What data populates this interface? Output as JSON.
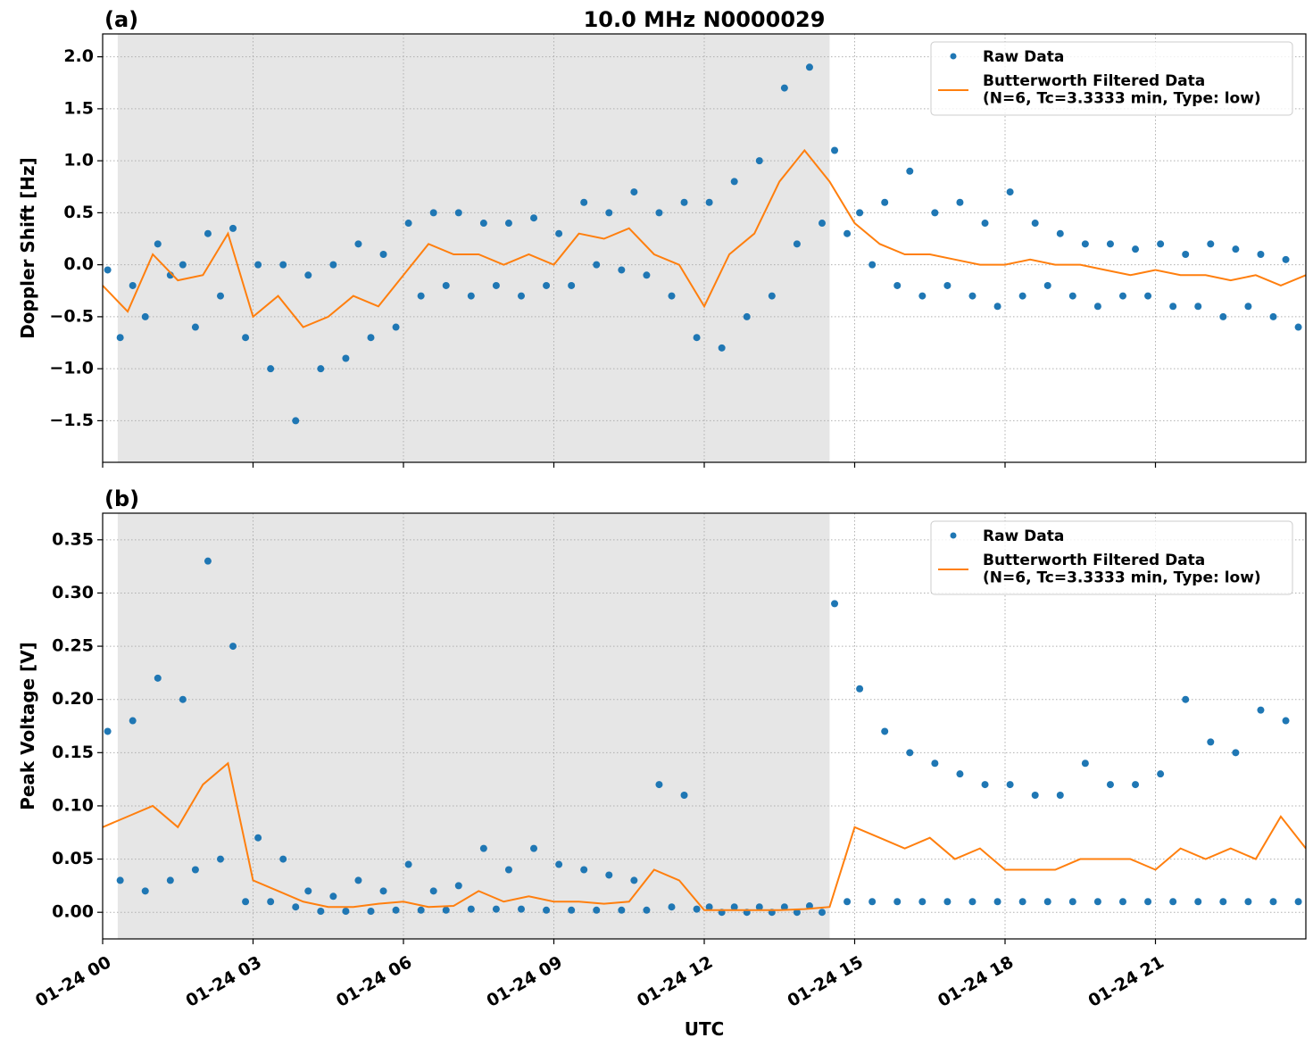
{
  "chart_data": [
    {
      "type": "line",
      "panel_label": "(a)",
      "title": "10.0 MHz N0000029",
      "ylabel": "Doppler Shift [Hz]",
      "xlim": [
        0,
        24
      ],
      "ylim": [
        -1.9,
        2.22
      ],
      "xticks": [
        0,
        3,
        6,
        9,
        12,
        15,
        18,
        21
      ],
      "yticks": [
        {
          "value": -1.5,
          "label": "−1.5"
        },
        {
          "value": -1.0,
          "label": "−1.0"
        },
        {
          "value": -0.5,
          "label": "−0.5"
        },
        {
          "value": 0.0,
          "label": "0.0"
        },
        {
          "value": 0.5,
          "label": "0.5"
        },
        {
          "value": 1.0,
          "label": "1.0"
        },
        {
          "value": 1.5,
          "label": "1.5"
        },
        {
          "value": 2.0,
          "label": "2.0"
        }
      ],
      "grid": true,
      "legend": "upper right",
      "shaded_span": [
        0.3,
        14.5
      ],
      "shade_color": "#e6e6e6",
      "series": [
        {
          "name": "Raw Data",
          "color": "#1f77b4",
          "mode": "markers",
          "x": [
            0.1,
            0.35,
            0.6,
            0.85,
            1.1,
            1.35,
            1.6,
            1.85,
            2.1,
            2.35,
            2.6,
            2.85,
            3.1,
            3.35,
            3.6,
            3.85,
            4.1,
            4.35,
            4.6,
            4.85,
            5.1,
            5.35,
            5.6,
            5.85,
            6.1,
            6.35,
            6.6,
            6.85,
            7.1,
            7.35,
            7.6,
            7.85,
            8.1,
            8.35,
            8.6,
            8.85,
            9.1,
            9.35,
            9.6,
            9.85,
            10.1,
            10.35,
            10.6,
            10.85,
            11.1,
            11.35,
            11.6,
            11.85,
            12.1,
            12.35,
            12.6,
            12.85,
            13.1,
            13.35,
            13.6,
            13.85,
            14.1,
            14.35,
            14.6,
            14.85,
            15.1,
            15.35,
            15.6,
            15.85,
            16.1,
            16.35,
            16.6,
            16.85,
            17.1,
            17.35,
            17.6,
            17.85,
            18.1,
            18.35,
            18.6,
            18.85,
            19.1,
            19.35,
            19.6,
            19.85,
            20.1,
            20.35,
            20.6,
            20.85,
            21.1,
            21.35,
            21.6,
            21.85,
            22.1,
            22.35,
            22.6,
            22.85,
            23.1,
            23.35,
            23.6,
            23.85
          ],
          "values": [
            -0.05,
            -0.7,
            -0.2,
            -0.5,
            0.2,
            -0.1,
            0.0,
            -0.6,
            0.3,
            -0.3,
            0.35,
            -0.7,
            0.0,
            -1.0,
            0.0,
            -1.5,
            -0.1,
            -1.0,
            0.0,
            -0.9,
            0.2,
            -0.7,
            0.1,
            -0.6,
            0.4,
            -0.3,
            0.5,
            -0.2,
            0.5,
            -0.3,
            0.4,
            -0.2,
            0.4,
            -0.3,
            0.45,
            -0.2,
            0.3,
            -0.2,
            0.6,
            0.0,
            0.5,
            -0.05,
            0.7,
            -0.1,
            0.5,
            -0.3,
            0.6,
            -0.7,
            0.6,
            -0.8,
            0.8,
            -0.5,
            1.0,
            -0.3,
            1.7,
            0.2,
            1.9,
            0.4,
            1.1,
            0.3,
            0.5,
            0.0,
            0.6,
            -0.2,
            0.9,
            -0.3,
            0.5,
            -0.2,
            0.6,
            -0.3,
            0.4,
            -0.4,
            0.7,
            -0.3,
            0.4,
            -0.2,
            0.3,
            -0.3,
            0.2,
            -0.4,
            0.2,
            -0.3,
            0.15,
            -0.3,
            0.2,
            -0.4,
            0.1,
            -0.4,
            0.2,
            -0.5,
            0.15,
            -0.4,
            0.1,
            -0.5,
            0.05,
            -0.6
          ]
        },
        {
          "name": "Butterworth Filtered Data\n(N=6, Tc=3.3333 min, Type: low)",
          "color": "#ff7f0e",
          "mode": "lines",
          "x": [
            0,
            0.5,
            1,
            1.5,
            2,
            2.5,
            3,
            3.5,
            4,
            4.5,
            5,
            5.5,
            6,
            6.5,
            7,
            7.5,
            8,
            8.5,
            9,
            9.5,
            10,
            10.5,
            11,
            11.5,
            12,
            12.5,
            13,
            13.5,
            14,
            14.5,
            15,
            15.5,
            16,
            16.5,
            17,
            17.5,
            18,
            18.5,
            19,
            19.5,
            20,
            20.5,
            21,
            21.5,
            22,
            22.5,
            23,
            23.5,
            24
          ],
          "values": [
            -0.2,
            -0.45,
            0.1,
            -0.15,
            -0.1,
            0.3,
            -0.5,
            -0.3,
            -0.6,
            -0.5,
            -0.3,
            -0.4,
            -0.1,
            0.2,
            0.1,
            0.1,
            0.0,
            0.1,
            0.0,
            0.3,
            0.25,
            0.35,
            0.1,
            0.0,
            -0.4,
            0.1,
            0.3,
            0.8,
            1.1,
            0.8,
            0.4,
            0.2,
            0.1,
            0.1,
            0.05,
            0.0,
            0.0,
            0.05,
            0.0,
            0.0,
            -0.05,
            -0.1,
            -0.05,
            -0.1,
            -0.1,
            -0.15,
            -0.1,
            -0.2,
            -0.1
          ]
        }
      ]
    },
    {
      "type": "line",
      "panel_label": "(b)",
      "ylabel": "Peak Voltage [V]",
      "xlabel": "UTC",
      "xlim": [
        0,
        24
      ],
      "ylim": [
        -0.025,
        0.375
      ],
      "xticks": [
        {
          "value": 0,
          "label": "01-24 00"
        },
        {
          "value": 3,
          "label": "01-24 03"
        },
        {
          "value": 6,
          "label": "01-24 06"
        },
        {
          "value": 9,
          "label": "01-24 09"
        },
        {
          "value": 12,
          "label": "01-24 12"
        },
        {
          "value": 15,
          "label": "01-24 15"
        },
        {
          "value": 18,
          "label": "01-24 18"
        },
        {
          "value": 21,
          "label": "01-24 21"
        }
      ],
      "yticks": [
        {
          "value": 0.0,
          "label": "0.00"
        },
        {
          "value": 0.05,
          "label": "0.05"
        },
        {
          "value": 0.1,
          "label": "0.10"
        },
        {
          "value": 0.15,
          "label": "0.15"
        },
        {
          "value": 0.2,
          "label": "0.20"
        },
        {
          "value": 0.25,
          "label": "0.25"
        },
        {
          "value": 0.3,
          "label": "0.30"
        },
        {
          "value": 0.35,
          "label": "0.35"
        }
      ],
      "grid": true,
      "legend": "upper right",
      "shaded_span": [
        0.3,
        14.5
      ],
      "shade_color": "#e6e6e6",
      "series": [
        {
          "name": "Raw Data",
          "color": "#1f77b4",
          "mode": "markers",
          "x": [
            0.1,
            0.35,
            0.6,
            0.85,
            1.1,
            1.35,
            1.6,
            1.85,
            2.1,
            2.35,
            2.6,
            2.85,
            3.1,
            3.35,
            3.6,
            3.85,
            4.1,
            4.35,
            4.6,
            4.85,
            5.1,
            5.35,
            5.6,
            5.85,
            6.1,
            6.35,
            6.6,
            6.85,
            7.1,
            7.35,
            7.6,
            7.85,
            8.1,
            8.35,
            8.6,
            8.85,
            9.1,
            9.35,
            9.6,
            9.85,
            10.1,
            10.35,
            10.6,
            10.85,
            11.1,
            11.35,
            11.6,
            11.85,
            12.1,
            12.35,
            12.6,
            12.85,
            13.1,
            13.35,
            13.6,
            13.85,
            14.1,
            14.35,
            14.6,
            14.85,
            15.1,
            15.35,
            15.6,
            15.85,
            16.1,
            16.35,
            16.6,
            16.85,
            17.1,
            17.35,
            17.6,
            17.85,
            18.1,
            18.35,
            18.6,
            18.85,
            19.1,
            19.35,
            19.6,
            19.85,
            20.1,
            20.35,
            20.6,
            20.85,
            21.1,
            21.35,
            21.6,
            21.85,
            22.1,
            22.35,
            22.6,
            22.85,
            23.1,
            23.35,
            23.6,
            23.85
          ],
          "values": [
            0.17,
            0.03,
            0.18,
            0.02,
            0.22,
            0.03,
            0.2,
            0.04,
            0.33,
            0.05,
            0.25,
            0.01,
            0.07,
            0.01,
            0.05,
            0.005,
            0.02,
            0.001,
            0.015,
            0.001,
            0.03,
            0.001,
            0.02,
            0.002,
            0.045,
            0.002,
            0.02,
            0.002,
            0.025,
            0.003,
            0.06,
            0.003,
            0.04,
            0.003,
            0.06,
            0.002,
            0.045,
            0.002,
            0.04,
            0.002,
            0.035,
            0.002,
            0.03,
            0.002,
            0.12,
            0.005,
            0.11,
            0.003,
            0.005,
            0.0,
            0.005,
            0.0,
            0.005,
            0.0,
            0.005,
            0.0,
            0.006,
            0.0,
            0.29,
            0.01,
            0.21,
            0.01,
            0.17,
            0.01,
            0.15,
            0.01,
            0.14,
            0.01,
            0.13,
            0.01,
            0.12,
            0.01,
            0.12,
            0.01,
            0.11,
            0.01,
            0.11,
            0.01,
            0.14,
            0.01,
            0.12,
            0.01,
            0.12,
            0.01,
            0.13,
            0.01,
            0.2,
            0.01,
            0.16,
            0.01,
            0.15,
            0.01,
            0.19,
            0.01,
            0.18,
            0.01
          ]
        },
        {
          "name": "Butterworth Filtered Data\n(N=6, Tc=3.3333 min, Type: low)",
          "color": "#ff7f0e",
          "mode": "lines",
          "x": [
            0,
            0.5,
            1,
            1.5,
            2,
            2.5,
            3,
            3.5,
            4,
            4.5,
            5,
            5.5,
            6,
            6.5,
            7,
            7.5,
            8,
            8.5,
            9,
            9.5,
            10,
            10.5,
            11,
            11.5,
            12,
            12.5,
            13,
            13.5,
            14,
            14.5,
            15,
            15.5,
            16,
            16.5,
            17,
            17.5,
            18,
            18.5,
            19,
            19.5,
            20,
            20.5,
            21,
            21.5,
            22,
            22.5,
            23,
            23.5,
            24
          ],
          "values": [
            0.08,
            0.09,
            0.1,
            0.08,
            0.12,
            0.14,
            0.03,
            0.02,
            0.01,
            0.005,
            0.005,
            0.008,
            0.01,
            0.005,
            0.006,
            0.02,
            0.01,
            0.015,
            0.01,
            0.01,
            0.008,
            0.01,
            0.04,
            0.03,
            0.002,
            0.002,
            0.002,
            0.002,
            0.003,
            0.005,
            0.08,
            0.07,
            0.06,
            0.07,
            0.05,
            0.06,
            0.04,
            0.04,
            0.04,
            0.05,
            0.05,
            0.05,
            0.04,
            0.06,
            0.05,
            0.06,
            0.05,
            0.09,
            0.06
          ]
        }
      ]
    }
  ]
}
